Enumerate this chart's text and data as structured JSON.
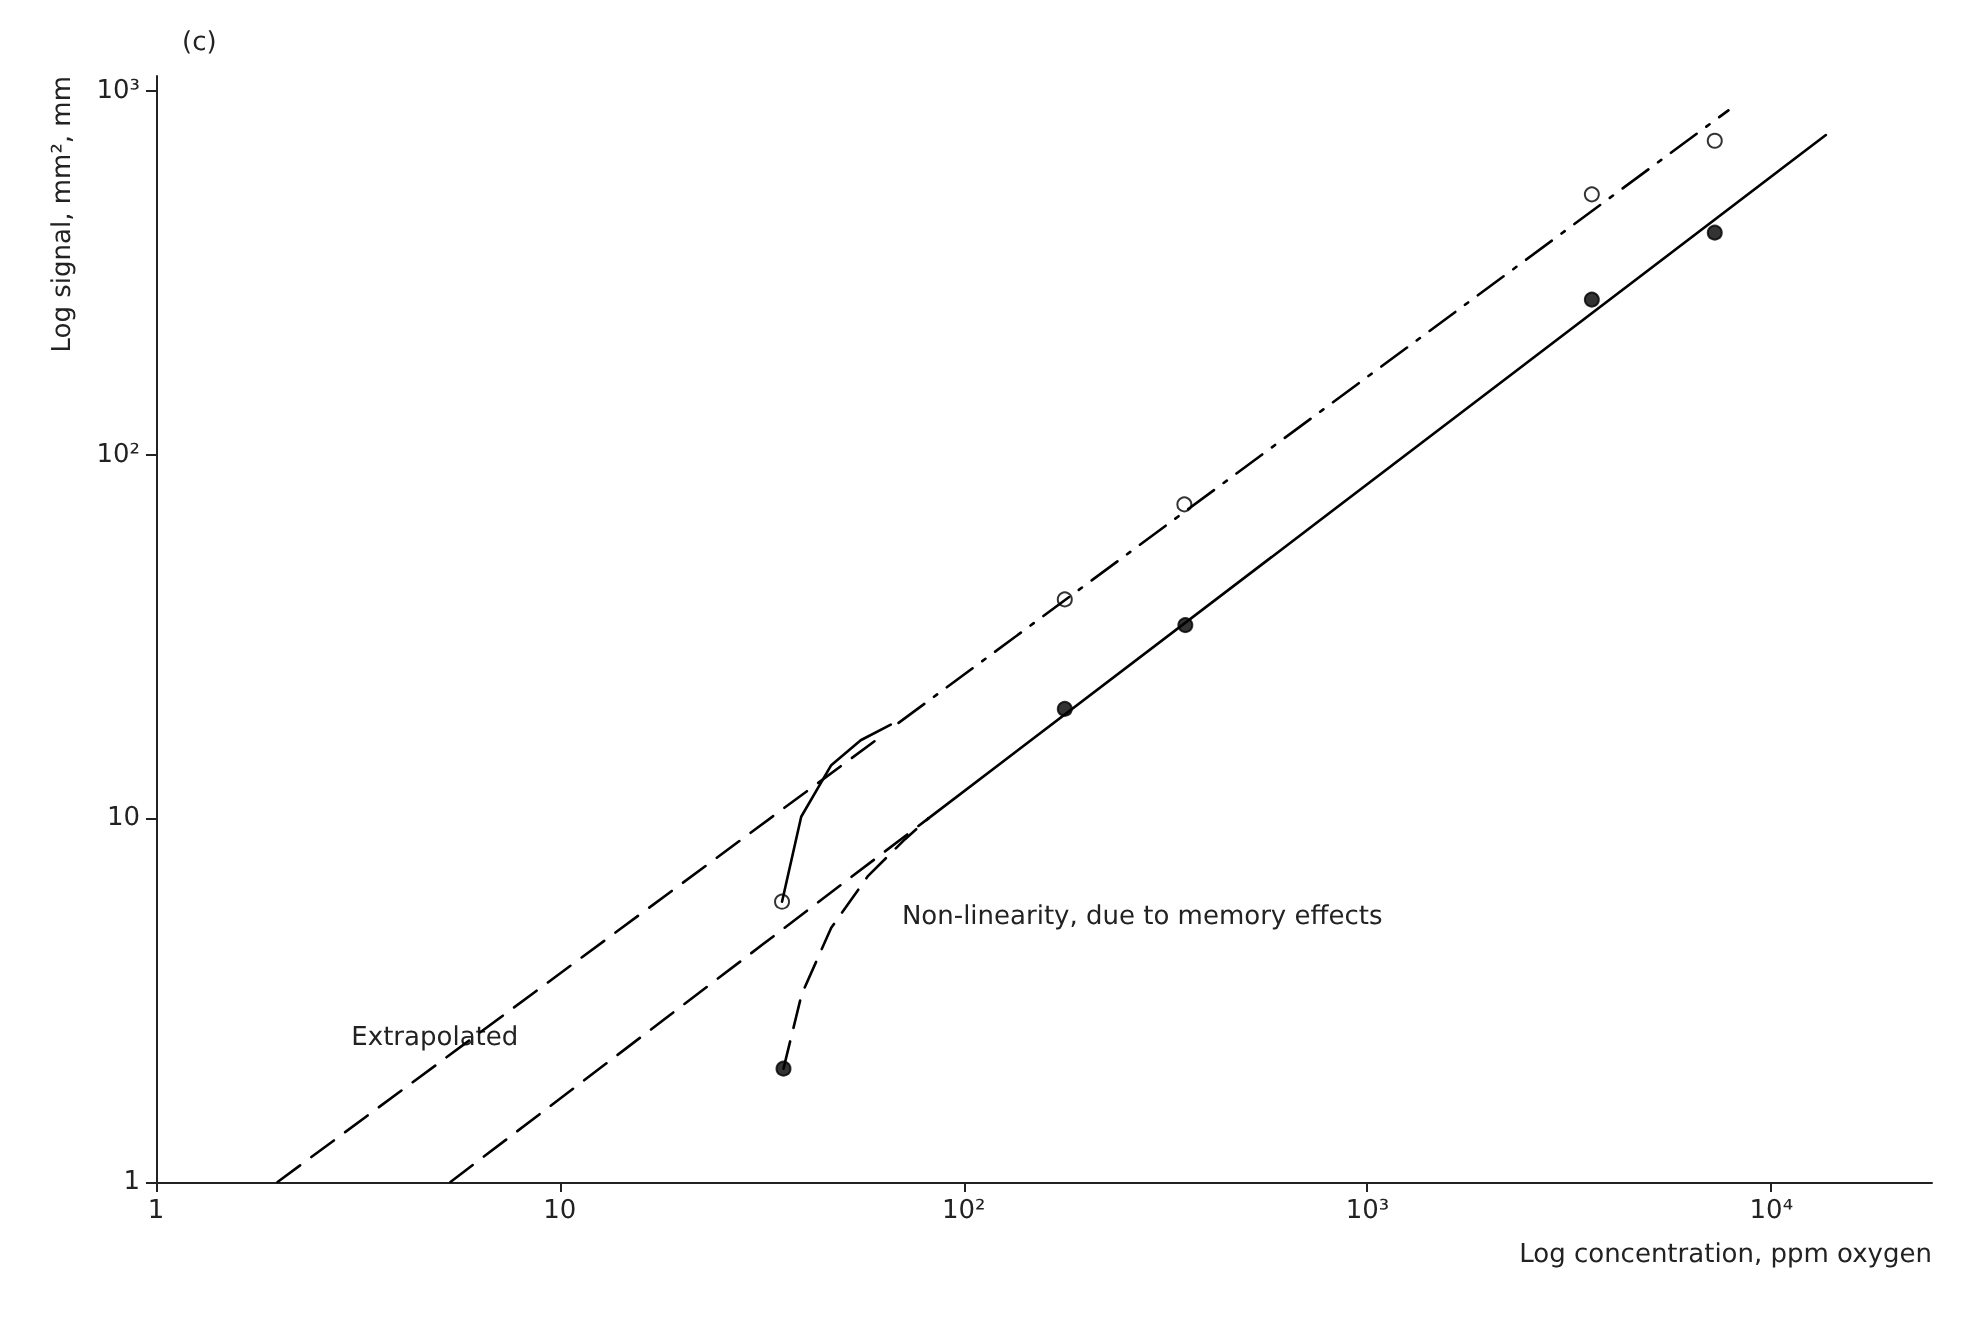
{
  "chart_data": {
    "type": "line",
    "title": "(c)",
    "xlabel": "Log concentration, ppm oxygen",
    "ylabel": "Log signal, mm², mm",
    "log": "xy",
    "xlim": [
      1,
      25000
    ],
    "ylim": [
      1,
      1100
    ],
    "xticks": [
      1,
      {
        "value": 10,
        "label": "10"
      },
      {
        "value": 100,
        "label": "10²"
      },
      {
        "value": 1000,
        "label": "10³"
      },
      {
        "value": 10000,
        "label": "10⁴"
      }
    ],
    "yticks": [
      1,
      10,
      {
        "value": 100,
        "label": "10²"
      },
      {
        "value": 1000,
        "label": "10³"
      }
    ],
    "series": [
      {
        "line_style": "dashed",
        "marker": "none",
        "color": "#000000",
        "x": [
          2,
          62
        ],
        "values": [
          1,
          16.7
        ]
      },
      {
        "line_style": "dashdot",
        "marker": "none",
        "color": "#000000",
        "x": [
          69,
          7830
        ],
        "values": [
          18.3,
          885
        ]
      },
      {
        "line_style": "solid",
        "marker": "none",
        "color": "#000000",
        "x": [
          35.5,
          39.6,
          47,
          55.6,
          66
        ],
        "values": [
          5.9,
          10.1,
          14,
          16.4,
          18.1
        ]
      },
      {
        "line_style": "dashed",
        "marker": "none",
        "color": "#000000",
        "x": [
          5.36,
          81.8
        ],
        "values": [
          1,
          10
        ]
      },
      {
        "line_style": "solid",
        "marker": "none",
        "color": "#000000",
        "x": [
          81.8,
          13650
        ],
        "values": [
          10,
          757
        ]
      },
      {
        "line_style": "dashed",
        "marker": "none",
        "color": "#000000",
        "x": [
          35.8,
          39.7,
          47,
          58,
          71.5,
          81.8
        ],
        "values": [
          2.05,
          3.28,
          5,
          6.95,
          8.75,
          10
        ]
      },
      {
        "type": "scatter",
        "marker": "circle",
        "color": "#ffffff",
        "x": [
          35.5,
          178,
          352,
          3594,
          7244
        ],
        "values": [
          5.9,
          40,
          73,
          520,
          730
        ]
      },
      {
        "type": "scatter",
        "marker": "circle",
        "color": "#000000",
        "x": [
          35.8,
          178,
          354,
          3594,
          7244
        ],
        "values": [
          2.05,
          20,
          34,
          267,
          408
        ]
      }
    ],
    "annotations": [
      "Extrapolated",
      "Non-linearity, due to memory effects"
    ]
  }
}
